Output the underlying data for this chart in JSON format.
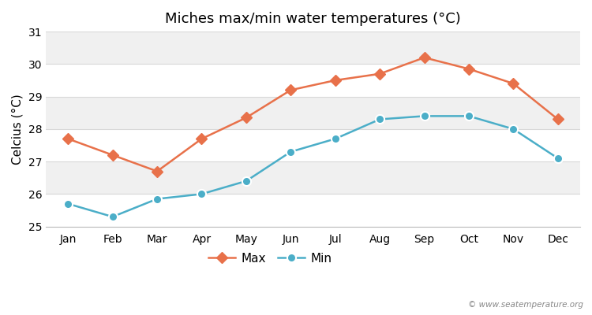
{
  "title": "Miches max/min water temperatures (°C)",
  "ylabel": "Celcius (°C)",
  "months": [
    "Jan",
    "Feb",
    "Mar",
    "Apr",
    "May",
    "Jun",
    "Jul",
    "Aug",
    "Sep",
    "Oct",
    "Nov",
    "Dec"
  ],
  "max_temps": [
    27.7,
    27.2,
    26.7,
    27.7,
    28.35,
    29.2,
    29.5,
    29.7,
    30.2,
    29.85,
    29.4,
    28.3
  ],
  "min_temps": [
    25.7,
    25.3,
    25.85,
    26.0,
    26.4,
    27.3,
    27.7,
    28.3,
    28.4,
    28.4,
    28.0,
    27.1
  ],
  "max_color": "#e8714a",
  "min_color": "#4baec8",
  "ylim": [
    25,
    31
  ],
  "yticks": [
    25,
    26,
    27,
    28,
    29,
    30,
    31
  ],
  "bg_color": "#ffffff",
  "plot_bg_color": "#ffffff",
  "band_color_light": "#f0f0f0",
  "band_color_white": "#ffffff",
  "grid_line_color": "#d8d8d8",
  "legend_labels": [
    "Max",
    "Min"
  ],
  "watermark": "© www.seatemperature.org",
  "marker_size_max": 7,
  "marker_size_min": 8,
  "line_width": 1.8,
  "title_fontsize": 13,
  "axis_fontsize": 10,
  "ylabel_fontsize": 11
}
